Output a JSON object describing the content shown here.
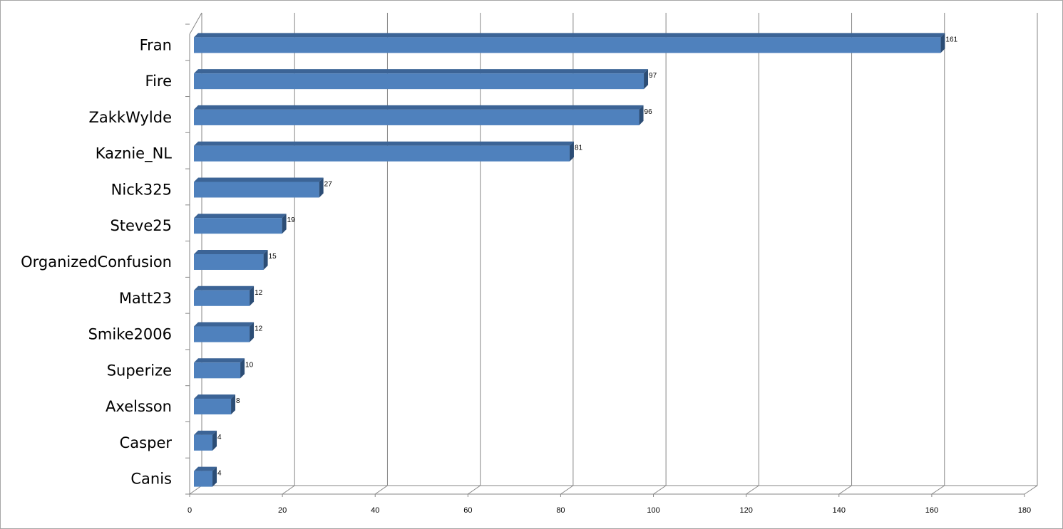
{
  "chart_data": {
    "type": "bar",
    "orientation": "horizontal",
    "style": "3d-clustered",
    "categories": [
      "Fran",
      "Fire",
      "ZakkWylde",
      "Kaznie_NL",
      "Nick325",
      "Steve25",
      "OrganizedConfusion",
      "Matt23",
      "Smike2006",
      "Superize",
      "Axelsson",
      "Casper",
      "Canis"
    ],
    "values": [
      161,
      97,
      96,
      81,
      27,
      19,
      15,
      12,
      12,
      10,
      8,
      4,
      4
    ],
    "data_labels": [
      "161",
      "97",
      "96",
      "81",
      "27",
      "19",
      "15",
      "12",
      "12",
      "10",
      "8",
      "4",
      "4"
    ],
    "xlim": [
      0,
      180
    ],
    "xticks": [
      0,
      20,
      40,
      60,
      80,
      100,
      120,
      140,
      160,
      180
    ],
    "xtick_labels": [
      "0",
      "20",
      "40",
      "60",
      "80",
      "100",
      "120",
      "140",
      "160",
      "180"
    ],
    "title": "",
    "xlabel": "",
    "ylabel": "",
    "grid": true,
    "legend": "none",
    "colors": {
      "bar_front": "#4f81bd",
      "bar_top": "#3c6496",
      "bar_side": "#2c4d75",
      "gridline": "#868686",
      "frame": "#a6a6a6"
    }
  }
}
